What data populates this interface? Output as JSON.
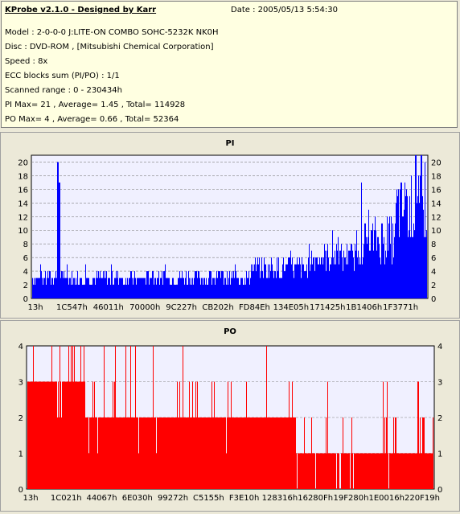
{
  "info": {
    "title": "KProbe v2.1.0 - Designed by Karr",
    "date": "Date : 2005/05/13 5:54:30",
    "model": "Model : 2-0-0-0 J:LITE-ON COMBO SOHC-5232K NK0H",
    "disc": "Disc : DVD-ROM ,  [Mitsubishi Chemical Corporation]",
    "speed": "Speed : 8x",
    "ecc": "ECC blocks sum (PI/PO) : 1/1",
    "range": "Scanned range : 0 - 230434h",
    "pi_stats": "PI Max= 21 , Average= 1.45 , Total= 114928",
    "po_stats": "PO Max= 4 , Average= 0.66 , Total= 52364"
  },
  "colors": {
    "pi": "#0000ff",
    "po": "#ff0000",
    "plot_bg": "#f0f0ff",
    "grid": "#808080"
  },
  "chart_data": [
    {
      "type": "bar",
      "title": "PI",
      "ylim": [
        0,
        21
      ],
      "yticks": [
        0,
        2,
        4,
        6,
        8,
        10,
        12,
        14,
        16,
        18,
        20
      ],
      "xlim_hex": [
        0,
        "230434h"
      ],
      "xtick_labels": [
        "13h",
        "1C547h",
        "46011h",
        "70000h",
        "9C227h",
        "CB202h",
        "FD84Eh",
        "134E05h",
        "171425h",
        "1B1406h",
        "1F3771h"
      ],
      "grid": true,
      "max": 21,
      "average": 1.45,
      "baseline_by_segment": [
        {
          "from": 0.0,
          "to": 0.55,
          "base": 2,
          "peak_typical": 4
        },
        {
          "from": 0.55,
          "to": 0.7,
          "base": 3,
          "peak_typical": 6
        },
        {
          "from": 0.7,
          "to": 0.82,
          "base": 4,
          "peak_typical": 8
        },
        {
          "from": 0.82,
          "to": 0.92,
          "base": 5,
          "peak_typical": 12
        },
        {
          "from": 0.92,
          "to": 1.0,
          "base": 8,
          "peak_typical": 18
        }
      ],
      "spikes": [
        {
          "x": 0.065,
          "y": 20
        },
        {
          "x": 0.068,
          "y": 17
        },
        {
          "x": 0.97,
          "y": 21
        },
        {
          "x": 0.985,
          "y": 21
        }
      ]
    },
    {
      "type": "bar",
      "title": "PO",
      "ylim": [
        0,
        4
      ],
      "yticks": [
        0,
        1,
        2,
        3,
        4
      ],
      "xtick_labels": [
        "13h",
        "1C021h",
        "44067h",
        "6E030h",
        "99272h",
        "C5155h",
        "F3E10h",
        "128316h",
        "16280Fh",
        "19F280h",
        "1E0016h",
        "220F19h"
      ],
      "grid": true,
      "max": 4,
      "average": 0.66,
      "level_by_segment": [
        {
          "from": 0.0,
          "to": 0.14,
          "level": 3
        },
        {
          "from": 0.14,
          "to": 0.36,
          "level": 2
        },
        {
          "from": 0.36,
          "to": 0.66,
          "level": 2
        },
        {
          "from": 0.66,
          "to": 1.0,
          "level": 1
        }
      ]
    }
  ]
}
